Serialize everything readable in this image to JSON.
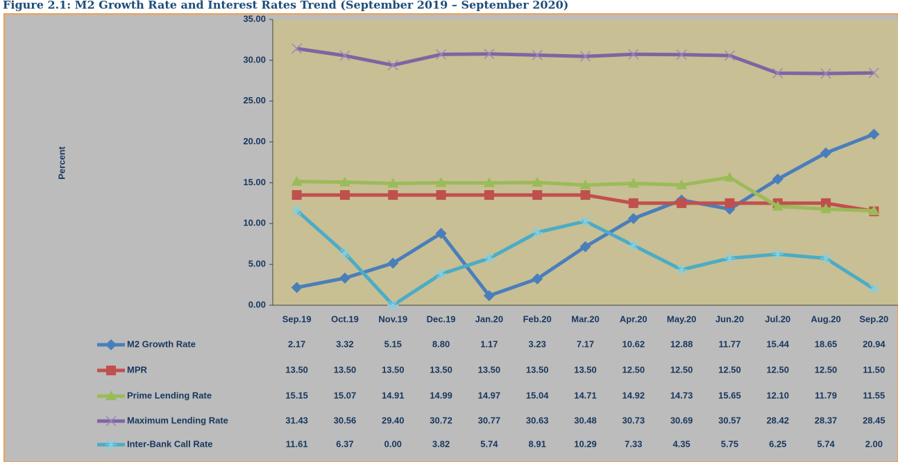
{
  "chart_data": {
    "type": "line",
    "title": "Figure 2.1: M2 Growth Rate and Interest Rates Trend (September 2019 – September 2020)",
    "y_label": "Percent",
    "categories": [
      "Sep.19",
      "Oct.19",
      "Nov.19",
      "Dec.19",
      "Jan.20",
      "Feb.20",
      "Mar.20",
      "Apr.20",
      "May.20",
      "Jun.20",
      "Jul.20",
      "Aug.20",
      "Sep.20"
    ],
    "ylim": [
      0,
      35
    ],
    "yticks": [
      {
        "value": 0,
        "label": "0.00"
      },
      {
        "value": 5,
        "label": "5.00"
      },
      {
        "value": 10,
        "label": "10.00"
      },
      {
        "value": 15,
        "label": "15.00"
      },
      {
        "value": 20,
        "label": "20.00"
      },
      {
        "value": 25,
        "label": "25.00"
      },
      {
        "value": 30,
        "label": "30.00"
      },
      {
        "value": 35,
        "label": "35.00"
      }
    ],
    "grid": false,
    "series": [
      {
        "name": "M2 Growth Rate",
        "color": "#4a7ebb",
        "marker": "diamond",
        "values": [
          2.17,
          3.32,
          5.15,
          8.8,
          1.17,
          3.23,
          7.17,
          10.62,
          12.88,
          11.77,
          15.44,
          18.65,
          20.94
        ],
        "value_labels": [
          "2.17",
          "3.32",
          "5.15",
          "8.80",
          "1.17",
          "3.23",
          "7.17",
          "10.62",
          "12.88",
          "11.77",
          "15.44",
          "18.65",
          "20.94"
        ]
      },
      {
        "name": "MPR",
        "color": "#c0504d",
        "marker": "square",
        "values": [
          13.5,
          13.5,
          13.5,
          13.5,
          13.5,
          13.5,
          13.5,
          12.5,
          12.5,
          12.5,
          12.5,
          12.5,
          11.5
        ],
        "value_labels": [
          "13.50",
          "13.50",
          "13.50",
          "13.50",
          "13.50",
          "13.50",
          "13.50",
          "12.50",
          "12.50",
          "12.50",
          "12.50",
          "12.50",
          "11.50"
        ]
      },
      {
        "name": "Prime Lending Rate",
        "color": "#9bbb59",
        "marker": "triangle",
        "values": [
          15.15,
          15.07,
          14.91,
          14.99,
          14.97,
          15.04,
          14.71,
          14.92,
          14.73,
          15.65,
          12.1,
          11.79,
          11.55
        ],
        "value_labels": [
          "15.15",
          "15.07",
          "14.91",
          "14.99",
          "14.97",
          "15.04",
          "14.71",
          "14.92",
          "14.73",
          "15.65",
          "12.10",
          "11.79",
          "11.55"
        ]
      },
      {
        "name": "Maximum Lending Rate",
        "color": "#8064a2",
        "marker": "x",
        "values": [
          31.43,
          30.56,
          29.4,
          30.72,
          30.77,
          30.63,
          30.48,
          30.73,
          30.69,
          30.57,
          28.42,
          28.37,
          28.45
        ],
        "value_labels": [
          "31.43",
          "30.56",
          "29.40",
          "30.72",
          "30.77",
          "30.63",
          "30.48",
          "30.73",
          "30.69",
          "30.57",
          "28.42",
          "28.37",
          "28.45"
        ]
      },
      {
        "name": "Inter-Bank Call Rate",
        "color": "#4bacc6",
        "marker": "star",
        "values": [
          11.61,
          6.37,
          0,
          3.82,
          5.74,
          8.91,
          10.29,
          7.33,
          4.35,
          5.75,
          6.25,
          5.74,
          2
        ],
        "value_labels": [
          "11.61",
          "6.37",
          "0.00",
          "3.82",
          "5.74",
          "8.91",
          "10.29",
          "7.33",
          "4.35",
          "5.75",
          "6.25",
          "5.74",
          "2.00"
        ]
      }
    ]
  }
}
